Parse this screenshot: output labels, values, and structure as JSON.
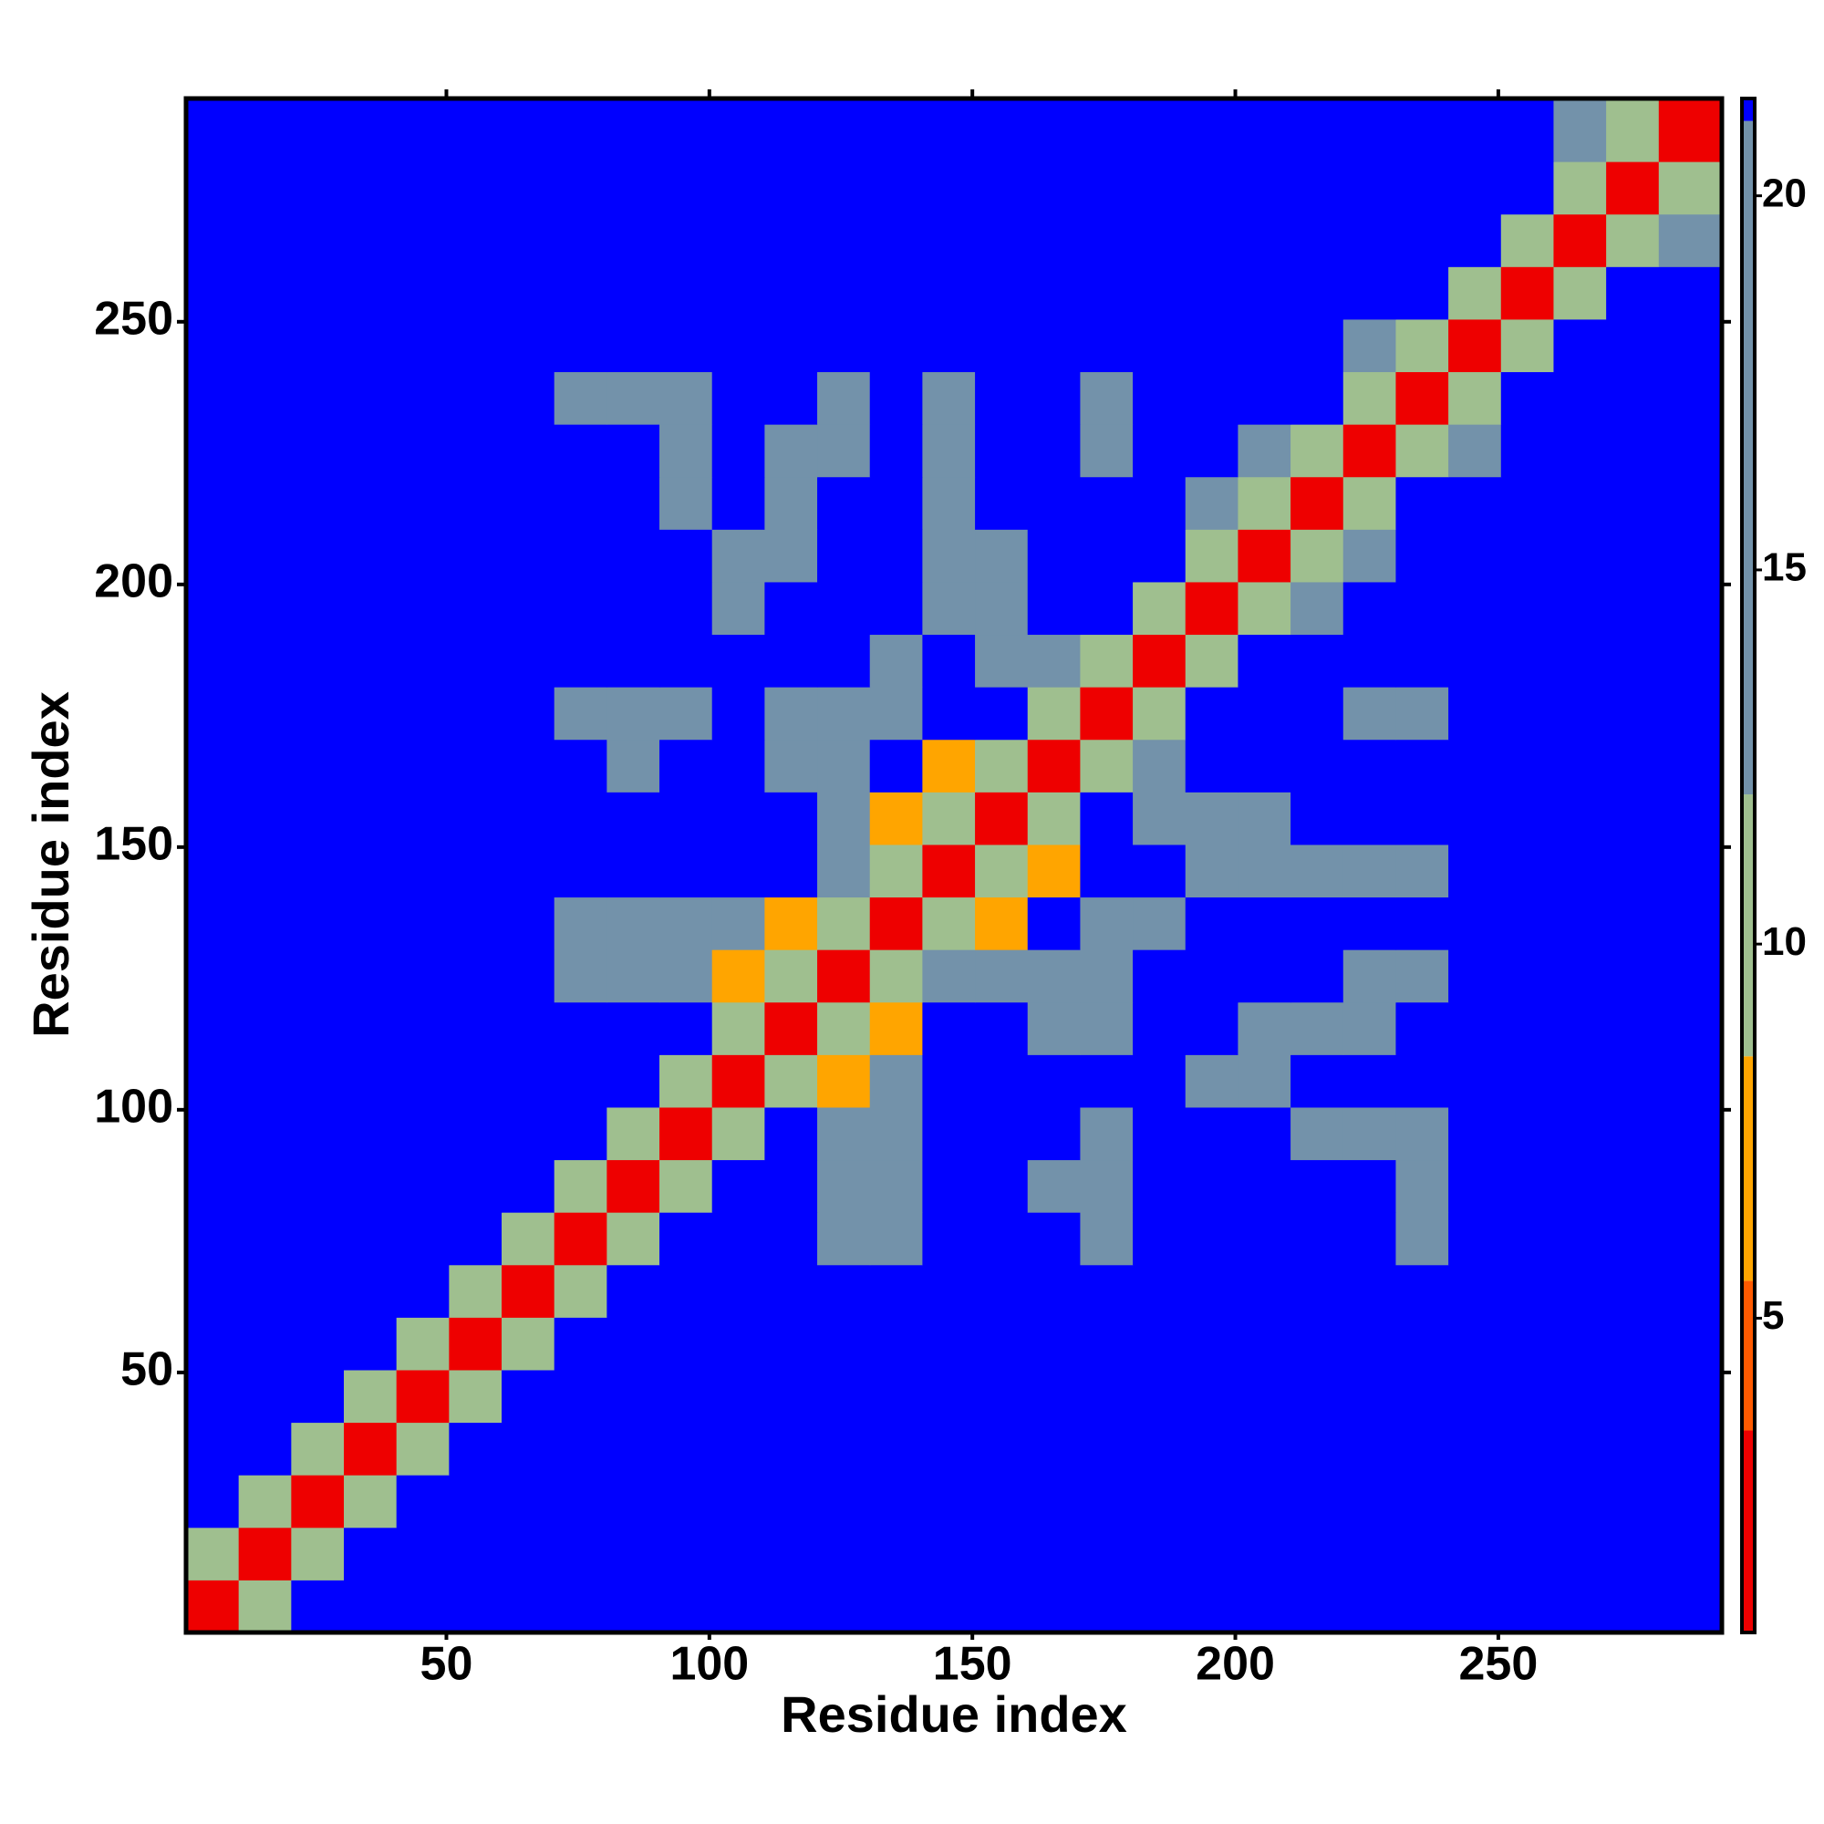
{
  "chart_data": {
    "type": "heatmap",
    "x_label": "Residue index",
    "y_label": "Residue index",
    "xlim": [
      0.5,
      292.5
    ],
    "ylim": [
      0.5,
      292.5
    ],
    "xticks": [
      50,
      100,
      150,
      200,
      250
    ],
    "yticks": [
      50,
      100,
      150,
      200,
      250
    ],
    "bins": [
      0.5,
      10.5,
      20.5,
      30.5,
      40.5,
      50.5,
      60.5,
      70.5,
      80.5,
      90.5,
      100.5,
      110.5,
      120.5,
      130.5,
      140.5,
      150.5,
      160.5,
      170.5,
      180.5,
      190.5,
      200.5,
      210.5,
      220.5,
      230.5,
      240.5,
      250.5,
      260.5,
      270.5,
      280.5,
      292.5
    ],
    "zlim": [
      0.8,
      21.3
    ],
    "color_breaks": [
      0.8,
      3.5,
      5.5,
      8.5,
      12,
      21,
      21.3
    ],
    "colors": [
      "#ee0000",
      "#ff5a00",
      "#ffa500",
      "#9fbf8f",
      "#7392aa",
      "#0000ff"
    ],
    "colorbar_ticks": [
      5,
      10,
      15,
      20
    ],
    "z": [
      [
        2,
        9,
        21.2,
        21.2,
        21.2,
        21.2,
        21.2,
        21.2,
        21.2,
        21.2,
        21.2,
        21.2,
        21.2,
        21.2,
        21.2,
        21.2,
        21.2,
        21.2,
        21.2,
        21.2,
        21.2,
        21.2,
        21.2,
        21.2,
        21.2,
        21.2,
        21.2,
        21.2,
        21.2
      ],
      [
        9,
        2,
        9,
        21.2,
        21.2,
        21.2,
        21.2,
        21.2,
        21.2,
        21.2,
        21.2,
        21.2,
        21.2,
        21.2,
        21.2,
        21.2,
        21.2,
        21.2,
        21.2,
        21.2,
        21.2,
        21.2,
        21.2,
        21.2,
        21.2,
        21.2,
        21.2,
        21.2,
        21.2
      ],
      [
        21.2,
        9,
        2,
        9,
        21.2,
        21.2,
        21.2,
        21.2,
        21.2,
        21.2,
        21.2,
        21.2,
        21.2,
        21.2,
        21.2,
        21.2,
        21.2,
        21.2,
        21.2,
        21.2,
        21.2,
        21.2,
        21.2,
        21.2,
        21.2,
        21.2,
        21.2,
        21.2,
        21.2
      ],
      [
        21.2,
        21.2,
        9,
        2,
        9,
        21.2,
        21.2,
        21.2,
        21.2,
        21.2,
        21.2,
        21.2,
        21.2,
        21.2,
        21.2,
        21.2,
        21.2,
        21.2,
        21.2,
        21.2,
        21.2,
        21.2,
        21.2,
        21.2,
        21.2,
        21.2,
        21.2,
        21.2,
        21.2
      ],
      [
        21.2,
        21.2,
        21.2,
        9,
        2,
        9,
        21.2,
        21.2,
        21.2,
        21.2,
        21.2,
        21.2,
        21.2,
        21.2,
        21.2,
        21.2,
        21.2,
        21.2,
        21.2,
        21.2,
        21.2,
        21.2,
        21.2,
        21.2,
        21.2,
        21.2,
        21.2,
        21.2,
        21.2
      ],
      [
        21.2,
        21.2,
        21.2,
        21.2,
        9,
        2,
        9,
        21.2,
        21.2,
        21.2,
        21.2,
        21.2,
        21.2,
        21.2,
        21.2,
        21.2,
        21.2,
        21.2,
        21.2,
        21.2,
        21.2,
        21.2,
        21.2,
        21.2,
        21.2,
        21.2,
        21.2,
        21.2,
        21.2
      ],
      [
        21.2,
        21.2,
        21.2,
        21.2,
        21.2,
        9,
        2,
        9,
        21.2,
        21.2,
        21.2,
        21.2,
        21.2,
        21.2,
        21.2,
        21.2,
        21.2,
        21.2,
        21.2,
        21.2,
        21.2,
        21.2,
        21.2,
        21.2,
        21.2,
        21.2,
        21.2,
        21.2,
        21.2
      ],
      [
        21.2,
        21.2,
        21.2,
        21.2,
        21.2,
        21.2,
        9,
        2,
        9,
        21.2,
        21.2,
        21.2,
        13,
        13,
        21.2,
        21.2,
        21.2,
        13,
        21.2,
        21.2,
        21.2,
        21.2,
        21.2,
        13,
        21.2,
        21.2,
        21.2,
        21.2,
        21.2
      ],
      [
        21.2,
        21.2,
        21.2,
        21.2,
        21.2,
        21.2,
        21.2,
        9,
        2,
        9,
        21.2,
        21.2,
        13,
        13,
        21.2,
        21.2,
        13,
        13,
        21.2,
        21.2,
        21.2,
        21.2,
        21.2,
        13,
        21.2,
        21.2,
        21.2,
        21.2,
        21.2
      ],
      [
        21.2,
        21.2,
        21.2,
        21.2,
        21.2,
        21.2,
        21.2,
        21.2,
        9,
        2,
        9,
        21.2,
        13,
        13,
        21.2,
        21.2,
        21.2,
        13,
        21.2,
        21.2,
        21.2,
        13,
        13,
        13,
        21.2,
        21.2,
        21.2,
        21.2,
        21.2
      ],
      [
        21.2,
        21.2,
        21.2,
        21.2,
        21.2,
        21.2,
        21.2,
        21.2,
        21.2,
        9,
        2,
        9,
        7,
        13,
        21.2,
        21.2,
        21.2,
        21.2,
        21.2,
        13,
        13,
        21.2,
        21.2,
        21.2,
        21.2,
        21.2,
        21.2,
        21.2,
        21.2
      ],
      [
        21.2,
        21.2,
        21.2,
        21.2,
        21.2,
        21.2,
        21.2,
        21.2,
        21.2,
        21.2,
        9,
        2,
        9,
        7,
        21.2,
        21.2,
        13,
        13,
        21.2,
        21.2,
        13,
        13,
        13,
        21.2,
        21.2,
        21.2,
        21.2,
        21.2,
        21.2
      ],
      [
        21.2,
        21.2,
        21.2,
        21.2,
        21.2,
        21.2,
        21.2,
        13,
        13,
        13,
        7,
        9,
        2,
        9,
        13,
        13,
        13,
        13,
        21.2,
        21.2,
        21.2,
        21.2,
        13,
        13,
        21.2,
        21.2,
        21.2,
        21.2,
        21.2
      ],
      [
        21.2,
        21.2,
        21.2,
        21.2,
        21.2,
        21.2,
        21.2,
        13,
        13,
        13,
        13,
        7,
        9,
        2,
        9,
        7,
        21.2,
        13,
        13,
        21.2,
        21.2,
        21.2,
        21.2,
        21.2,
        21.2,
        21.2,
        21.2,
        21.2,
        21.2
      ],
      [
        21.2,
        21.2,
        21.2,
        21.2,
        21.2,
        21.2,
        21.2,
        21.2,
        21.2,
        21.2,
        21.2,
        21.2,
        13,
        9,
        2,
        9,
        7,
        21.2,
        21.2,
        13,
        13,
        13,
        13,
        13,
        21.2,
        21.2,
        21.2,
        21.2,
        21.2
      ],
      [
        21.2,
        21.2,
        21.2,
        21.2,
        21.2,
        21.2,
        21.2,
        21.2,
        21.2,
        21.2,
        21.2,
        21.2,
        13,
        7,
        9,
        2,
        9,
        21.2,
        13,
        13,
        13,
        21.2,
        21.2,
        21.2,
        21.2,
        21.2,
        21.2,
        21.2,
        21.2
      ],
      [
        21.2,
        21.2,
        21.2,
        21.2,
        21.2,
        21.2,
        21.2,
        21.2,
        13,
        21.2,
        21.2,
        13,
        13,
        21.2,
        7,
        9,
        2,
        9,
        13,
        21.2,
        21.2,
        21.2,
        21.2,
        21.2,
        21.2,
        21.2,
        21.2,
        21.2,
        21.2
      ],
      [
        21.2,
        21.2,
        21.2,
        21.2,
        21.2,
        21.2,
        21.2,
        13,
        13,
        13,
        21.2,
        13,
        13,
        13,
        21.2,
        21.2,
        9,
        2,
        9,
        21.2,
        21.2,
        21.2,
        13,
        13,
        21.2,
        21.2,
        21.2,
        21.2,
        21.2
      ],
      [
        21.2,
        21.2,
        21.2,
        21.2,
        21.2,
        21.2,
        21.2,
        21.2,
        21.2,
        21.2,
        21.2,
        21.2,
        21.2,
        13,
        21.2,
        13,
        13,
        9,
        2,
        9,
        21.2,
        21.2,
        21.2,
        21.2,
        21.2,
        21.2,
        21.2,
        21.2,
        21.2
      ],
      [
        21.2,
        21.2,
        21.2,
        21.2,
        21.2,
        21.2,
        21.2,
        21.2,
        21.2,
        21.2,
        13,
        21.2,
        21.2,
        21.2,
        13,
        13,
        21.2,
        21.2,
        9,
        2,
        9,
        13,
        21.2,
        21.2,
        21.2,
        21.2,
        21.2,
        21.2,
        21.2
      ],
      [
        21.2,
        21.2,
        21.2,
        21.2,
        21.2,
        21.2,
        21.2,
        21.2,
        21.2,
        21.2,
        13,
        13,
        21.2,
        21.2,
        13,
        13,
        21.2,
        21.2,
        21.2,
        9,
        2,
        9,
        13,
        21.2,
        21.2,
        21.2,
        21.2,
        21.2,
        21.2
      ],
      [
        21.2,
        21.2,
        21.2,
        21.2,
        21.2,
        21.2,
        21.2,
        21.2,
        21.2,
        13,
        21.2,
        13,
        21.2,
        21.2,
        13,
        21.2,
        21.2,
        21.2,
        21.2,
        13,
        9,
        2,
        9,
        21.2,
        21.2,
        21.2,
        21.2,
        21.2,
        21.2
      ],
      [
        21.2,
        21.2,
        21.2,
        21.2,
        21.2,
        21.2,
        21.2,
        21.2,
        21.2,
        13,
        21.2,
        13,
        13,
        21.2,
        13,
        21.2,
        21.2,
        13,
        21.2,
        21.2,
        13,
        9,
        2,
        9,
        13,
        21.2,
        21.2,
        21.2,
        21.2
      ],
      [
        21.2,
        21.2,
        21.2,
        21.2,
        21.2,
        21.2,
        21.2,
        13,
        13,
        13,
        21.2,
        21.2,
        13,
        21.2,
        13,
        21.2,
        21.2,
        13,
        21.2,
        21.2,
        21.2,
        21.2,
        9,
        2,
        9,
        21.2,
        21.2,
        21.2,
        21.2
      ],
      [
        21.2,
        21.2,
        21.2,
        21.2,
        21.2,
        21.2,
        21.2,
        21.2,
        21.2,
        21.2,
        21.2,
        21.2,
        21.2,
        21.2,
        21.2,
        21.2,
        21.2,
        21.2,
        21.2,
        21.2,
        21.2,
        21.2,
        13,
        9,
        2,
        9,
        21.2,
        21.2,
        21.2
      ],
      [
        21.2,
        21.2,
        21.2,
        21.2,
        21.2,
        21.2,
        21.2,
        21.2,
        21.2,
        21.2,
        21.2,
        21.2,
        21.2,
        21.2,
        21.2,
        21.2,
        21.2,
        21.2,
        21.2,
        21.2,
        21.2,
        21.2,
        21.2,
        21.2,
        9,
        2,
        9,
        21.2,
        21.2
      ],
      [
        21.2,
        21.2,
        21.2,
        21.2,
        21.2,
        21.2,
        21.2,
        21.2,
        21.2,
        21.2,
        21.2,
        21.2,
        21.2,
        21.2,
        21.2,
        21.2,
        21.2,
        21.2,
        21.2,
        21.2,
        21.2,
        21.2,
        21.2,
        21.2,
        21.2,
        9,
        2,
        9,
        13
      ],
      [
        21.2,
        21.2,
        21.2,
        21.2,
        21.2,
        21.2,
        21.2,
        21.2,
        21.2,
        21.2,
        21.2,
        21.2,
        21.2,
        21.2,
        21.2,
        21.2,
        21.2,
        21.2,
        21.2,
        21.2,
        21.2,
        21.2,
        21.2,
        21.2,
        21.2,
        21.2,
        9,
        2,
        9
      ],
      [
        21.2,
        21.2,
        21.2,
        21.2,
        21.2,
        21.2,
        21.2,
        21.2,
        21.2,
        21.2,
        21.2,
        21.2,
        21.2,
        21.2,
        21.2,
        21.2,
        21.2,
        21.2,
        21.2,
        21.2,
        21.2,
        21.2,
        21.2,
        21.2,
        21.2,
        21.2,
        13,
        9,
        2
      ]
    ]
  }
}
